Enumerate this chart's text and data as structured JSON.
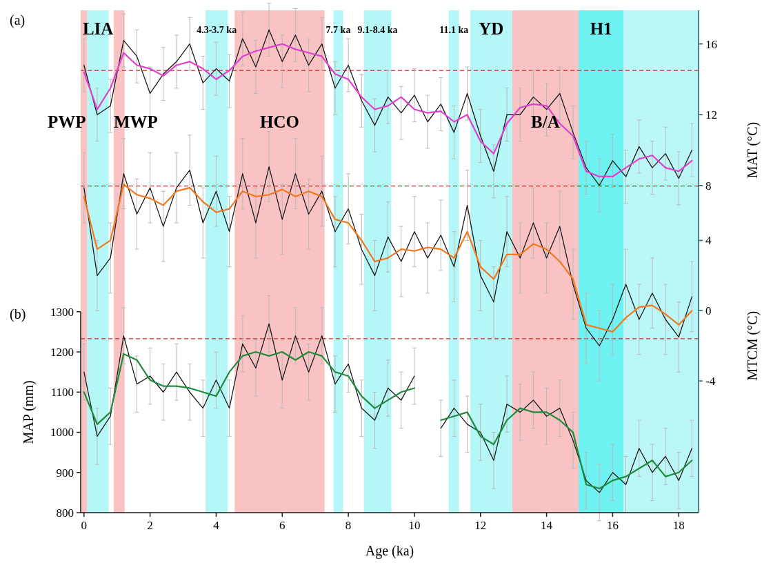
{
  "chart_data": {
    "type": "line",
    "xlabel": "Age (ka)",
    "ylabel": "MAP (mm)",
    "y2label": "MAT (°C)",
    "y3label": "MTCM (°C)",
    "annotations": [
      "(a)",
      "(b)"
    ],
    "x": [
      0,
      0.4,
      0.8,
      1.2,
      1.6,
      2.0,
      2.4,
      2.8,
      3.2,
      3.6,
      4.0,
      4.4,
      4.8,
      5.2,
      5.6,
      6.0,
      6.4,
      6.8,
      7.2,
      7.6,
      8.0,
      8.4,
      8.8,
      9.2,
      9.6,
      10.0,
      10.4,
      10.8,
      11.2,
      11.6,
      12.0,
      12.4,
      12.8,
      13.2,
      13.6,
      14.0,
      14.4,
      14.8,
      15.2,
      15.6,
      16.0,
      16.4,
      16.8,
      17.2,
      17.6,
      18.0,
      18.4
    ],
    "xlim": [
      -0.1,
      18.6
    ],
    "xticks": [
      0,
      2,
      4,
      6,
      8,
      10,
      12,
      14,
      16,
      18
    ],
    "ylim": [
      800,
      2050
    ],
    "yticks": [
      800,
      900,
      1000,
      1100,
      1200,
      1300
    ],
    "y2lim": [
      -10.5,
      17.9
    ],
    "y2ticks": [
      8,
      12,
      16
    ],
    "y3lim": [
      -11.5,
      17.1
    ],
    "y3ticks": [
      -4,
      0,
      4
    ],
    "grid": false,
    "marker": "none",
    "line_style": "solid",
    "series": [
      {
        "axis": "y2",
        "color": "#1a1a1a",
        "values": [
          14.8,
          12.0,
          12.5,
          16.2,
          15.3,
          13.2,
          14.3,
          15.0,
          16.0,
          13.8,
          14.6,
          13.9,
          16.3,
          14.7,
          16.8,
          15.0,
          16.5,
          14.8,
          16.0,
          13.5,
          14.8,
          12.8,
          11.4,
          13.0,
          12.1,
          13.1,
          11.6,
          12.6,
          11.0,
          13.2,
          10.8,
          8.8,
          12.0,
          12.0,
          13.0,
          12.3,
          13.2,
          11.0,
          9.0,
          8.0,
          9.4,
          8.5,
          10.2,
          9.0,
          9.8,
          8.4,
          10.0
        ],
        "errors": [
          1.5,
          1.5,
          1.5,
          1.5,
          1.5,
          1.5,
          1.5,
          1.5,
          1.5,
          1.5,
          1.5,
          1.5,
          1.5,
          1.5,
          1.5,
          1.5,
          1.5,
          1.5,
          1.5,
          1.5,
          1.5,
          1.5,
          1.5,
          1.5,
          1.5,
          1.5,
          1.5,
          1.5,
          1.5,
          1.5,
          1.5,
          1.5,
          1.5,
          1.5,
          1.5,
          1.5,
          1.5,
          1.5,
          1.5,
          1.5,
          1.5,
          1.5,
          1.5,
          1.5,
          1.5,
          1.5,
          1.5
        ]
      },
      {
        "axis": "y2",
        "color": "#e040d0",
        "values": [
          14.4,
          12.3,
          13.5,
          15.5,
          14.8,
          14.6,
          14.2,
          14.8,
          15.0,
          14.6,
          14.0,
          14.5,
          15.3,
          15.6,
          15.8,
          16.0,
          15.7,
          15.5,
          15.3,
          14.3,
          14.0,
          13.0,
          12.3,
          12.5,
          13.0,
          12.3,
          12.1,
          12.2,
          11.6,
          12.0,
          10.5,
          9.8,
          11.5,
          12.4,
          12.6,
          12.5,
          11.5,
          10.8,
          8.8,
          8.5,
          8.5,
          9.0,
          9.5,
          9.7,
          9.0,
          8.8,
          9.4
        ]
      },
      {
        "axis": "y3",
        "color": "#1a1a1a",
        "values": [
          7.0,
          2.0,
          3.0,
          7.8,
          5.5,
          7.0,
          4.8,
          7.0,
          8.0,
          5.0,
          6.8,
          4.5,
          7.8,
          5.0,
          8.2,
          5.2,
          7.8,
          5.5,
          6.8,
          4.5,
          5.8,
          3.5,
          2.0,
          4.2,
          2.8,
          4.5,
          3.0,
          4.3,
          2.5,
          6.0,
          2.0,
          0.5,
          4.5,
          3.0,
          5.0,
          3.0,
          4.8,
          1.5,
          -1.0,
          -2.0,
          -0.5,
          1.5,
          -0.5,
          1.0,
          -0.5,
          -1.5,
          0.8
        ],
        "errors": [
          2,
          2,
          2,
          2,
          2,
          2,
          2,
          2,
          2,
          2,
          2,
          2,
          2,
          2,
          2,
          2,
          2,
          2,
          2,
          2,
          2,
          2,
          2,
          2,
          2,
          2,
          2,
          2,
          2,
          2,
          2,
          2,
          2,
          2,
          2,
          2,
          2,
          2,
          2,
          2,
          2,
          2,
          2,
          2,
          2,
          2,
          2
        ]
      },
      {
        "axis": "y3",
        "color": "#f07820",
        "values": [
          6.5,
          3.5,
          4.0,
          7.2,
          6.6,
          6.4,
          6.0,
          6.8,
          7.0,
          6.2,
          5.6,
          5.8,
          6.8,
          6.5,
          6.6,
          6.9,
          6.5,
          6.8,
          6.5,
          5.2,
          5.0,
          4.0,
          2.8,
          3.0,
          3.5,
          3.4,
          3.6,
          3.5,
          3.0,
          4.5,
          2.5,
          1.8,
          3.2,
          3.2,
          3.8,
          3.5,
          2.8,
          1.8,
          -0.8,
          -1.0,
          -1.2,
          -0.4,
          0.2,
          0.3,
          -0.2,
          -0.8,
          0.0
        ]
      },
      {
        "color": "#1a1a1a",
        "values": [
          1150,
          990,
          1040,
          1240,
          1120,
          1140,
          1100,
          1150,
          1100,
          1060,
          1130,
          1060,
          1220,
          1160,
          1270,
          1130,
          1240,
          1150,
          1240,
          1120,
          1170,
          1060,
          1030,
          1110,
          1080,
          1140,
          null,
          1010,
          1060,
          1020,
          1000,
          930,
          1070,
          1050,
          1080,
          1040,
          1060,
          980,
          880,
          850,
          900,
          870,
          960,
          900,
          940,
          880,
          960
        ],
        "errors": [
          70,
          70,
          70,
          70,
          70,
          70,
          70,
          70,
          70,
          70,
          70,
          70,
          70,
          70,
          70,
          70,
          70,
          70,
          70,
          70,
          70,
          70,
          70,
          70,
          70,
          70,
          null,
          70,
          70,
          70,
          70,
          70,
          70,
          70,
          70,
          70,
          70,
          70,
          70,
          70,
          70,
          70,
          70,
          70,
          70,
          70,
          70
        ]
      },
      {
        "color": "#1e8c3c",
        "values": [
          1100,
          1020,
          1050,
          1195,
          1180,
          1130,
          1115,
          1115,
          1110,
          1100,
          1090,
          1150,
          1190,
          1200,
          1190,
          1200,
          1180,
          1200,
          1190,
          1150,
          1140,
          1090,
          1060,
          1080,
          1100,
          1110,
          null,
          1030,
          1040,
          1050,
          990,
          970,
          1030,
          1060,
          1050,
          1050,
          1030,
          1000,
          870,
          860,
          880,
          890,
          910,
          930,
          890,
          900,
          930
        ]
      }
    ],
    "ref_lines": [
      {
        "axis": "y2",
        "value": 14.5,
        "color": "#cc2222",
        "line_style": "dashed"
      },
      {
        "axis": "y3",
        "value": 7.1,
        "color": "#cc2222",
        "line_style": "dashed"
      },
      {
        "axis": "y",
        "value": 1233,
        "color": "#cc2222",
        "line_style": "dashed"
      }
    ],
    "bands": [
      {
        "axis": "x",
        "from": -0.1,
        "to": 0.1,
        "label": "PWP",
        "color": "#f8b8b8"
      },
      {
        "axis": "x",
        "from": 0.1,
        "to": 0.75,
        "label": "LIA",
        "color": "#a8f4f4"
      },
      {
        "axis": "x",
        "from": 0.9,
        "to": 1.23,
        "label": "MWP",
        "color": "#f8b8b8"
      },
      {
        "axis": "x",
        "from": 3.68,
        "to": 4.35,
        "label": "4.3-3.7 ka",
        "color": "#a8f4f4"
      },
      {
        "axis": "x",
        "from": 4.56,
        "to": 7.28,
        "label": "HCO",
        "color": "#f8b8b8"
      },
      {
        "axis": "x",
        "from": 7.55,
        "to": 7.84,
        "label": "7.7 ka",
        "color": "#a8f4f4"
      },
      {
        "axis": "x",
        "from": 8.47,
        "to": 9.3,
        "label": "9.1-8.4 ka",
        "color": "#a8f4f4"
      },
      {
        "axis": "x",
        "from": 11.04,
        "to": 11.35,
        "label": "11.1 ka",
        "color": "#a8f4f4"
      },
      {
        "axis": "x",
        "from": 11.69,
        "to": 12.96,
        "label": "YD",
        "color": "#a8f4f4"
      },
      {
        "axis": "x",
        "from": 12.96,
        "to": 14.97,
        "label": "B/A",
        "color": "#f8b8b8"
      },
      {
        "axis": "x",
        "from": 14.97,
        "to": 16.33,
        "label": "H1",
        "color": "#55f0f0"
      },
      {
        "axis": "x",
        "from": 16.33,
        "to": 18.6,
        "color": "#b0f6f6"
      }
    ]
  }
}
